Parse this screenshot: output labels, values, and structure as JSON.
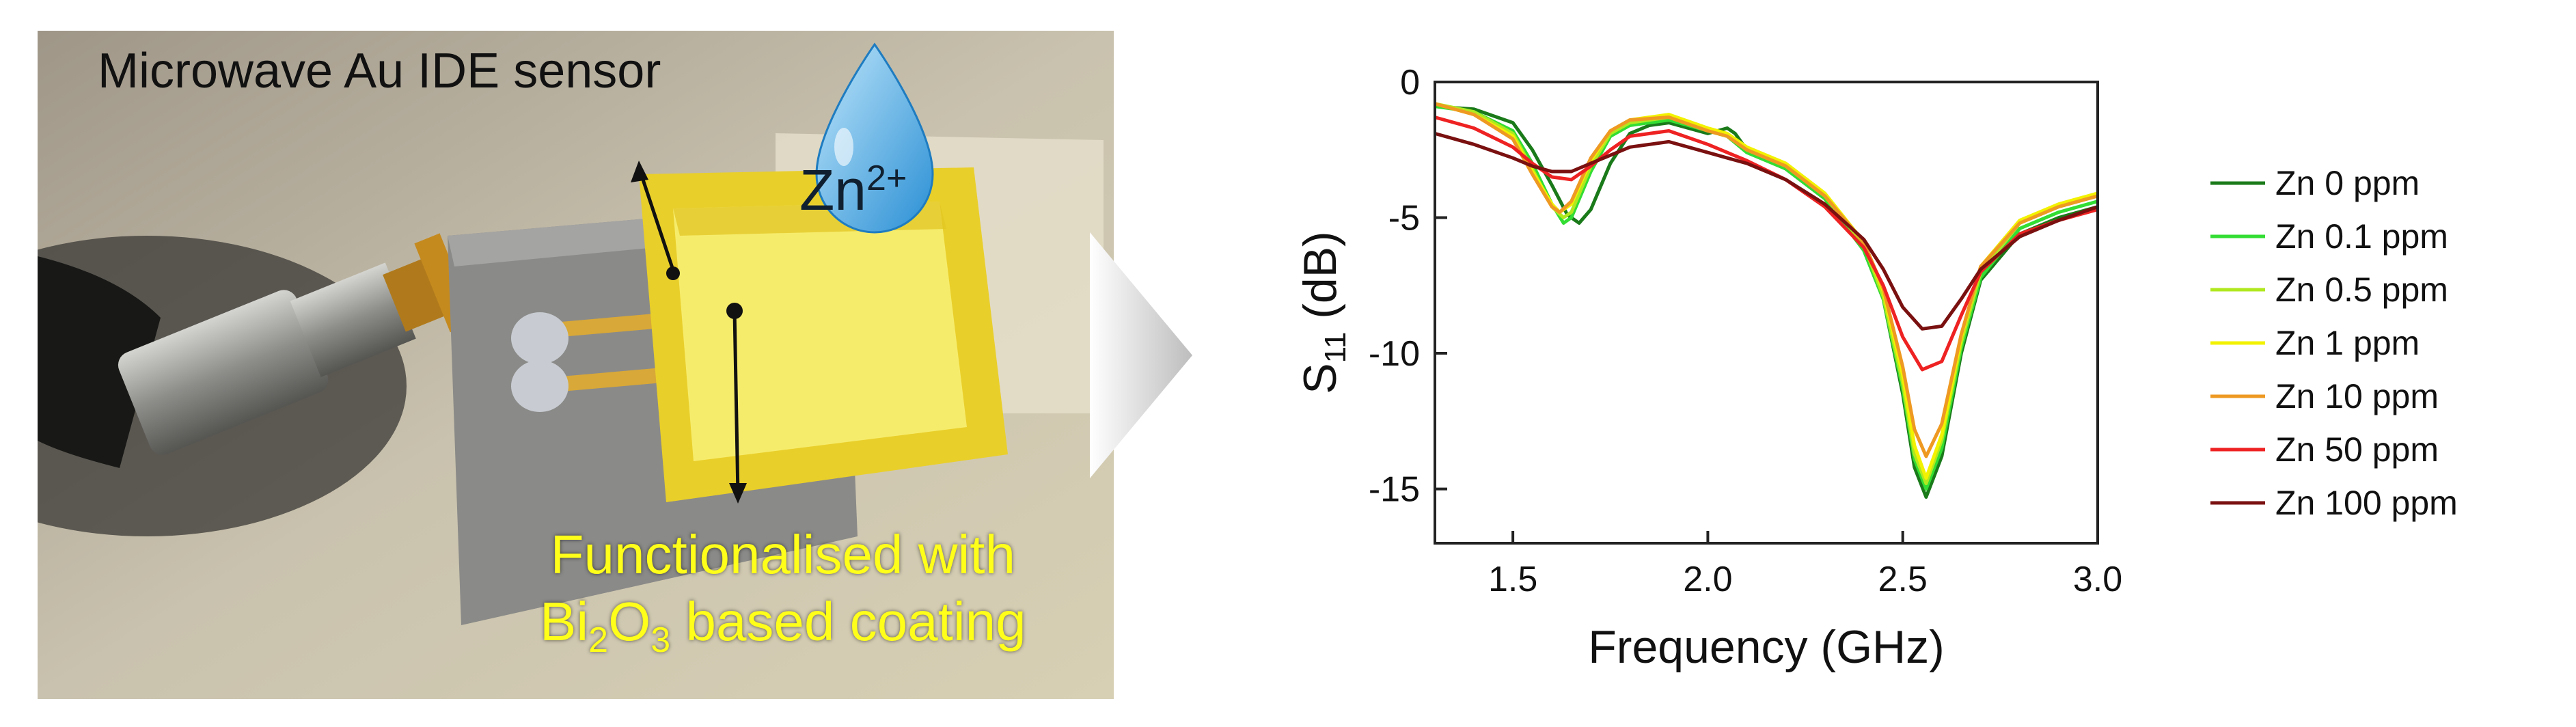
{
  "photo": {
    "sensor_label": "Microwave Au IDE sensor",
    "coating_line1_a": "Functionalised with",
    "coating_line2_a": "Bi",
    "coating_line2_sub1": "2",
    "coating_line2_b": "O",
    "coating_line2_sub2": "3",
    "coating_line2_c": " based coating",
    "ion_label": "Zn",
    "ion_charge": "2+"
  },
  "chart_data": {
    "type": "line",
    "xlabel": "Frequency (GHz)",
    "ylabel_main": "S",
    "ylabel_sub": "11",
    "ylabel_unit": " (dB)",
    "xlim": [
      1.3,
      3.0
    ],
    "ylim": [
      -17,
      0
    ],
    "xticks": [
      "1.5",
      "2.0",
      "2.5",
      "3.0"
    ],
    "yticks": [
      "0",
      "-5",
      "-10",
      "-15"
    ],
    "grid": false,
    "legend_position": "right",
    "series": [
      {
        "name": "Zn 0 ppm",
        "color": "#1a7a1a",
        "x": [
          1.3,
          1.4,
          1.5,
          1.55,
          1.6,
          1.64,
          1.67,
          1.7,
          1.75,
          1.8,
          1.85,
          1.9,
          1.95,
          2.0,
          2.05,
          2.07,
          2.1,
          2.2,
          2.3,
          2.4,
          2.45,
          2.5,
          2.53,
          2.56,
          2.6,
          2.65,
          2.7,
          2.8,
          2.9,
          3.0
        ],
        "y": [
          -0.9,
          -1.0,
          -1.5,
          -2.5,
          -3.8,
          -4.9,
          -5.2,
          -4.7,
          -3.0,
          -1.9,
          -1.6,
          -1.5,
          -1.7,
          -1.9,
          -1.7,
          -1.9,
          -2.5,
          -3.2,
          -4.3,
          -6.2,
          -8.0,
          -11.5,
          -14.2,
          -15.3,
          -13.8,
          -10.0,
          -7.3,
          -5.6,
          -5.0,
          -4.6
        ]
      },
      {
        "name": "Zn 0.1 ppm",
        "color": "#33dd33",
        "x": [
          1.3,
          1.4,
          1.5,
          1.55,
          1.6,
          1.63,
          1.65,
          1.7,
          1.75,
          1.8,
          1.9,
          2.0,
          2.05,
          2.1,
          2.2,
          2.3,
          2.4,
          2.45,
          2.5,
          2.53,
          2.56,
          2.6,
          2.65,
          2.7,
          2.8,
          2.9,
          3.0
        ],
        "y": [
          -0.9,
          -1.1,
          -1.8,
          -3.0,
          -4.5,
          -5.2,
          -5.0,
          -3.3,
          -2.0,
          -1.6,
          -1.4,
          -1.8,
          -2.0,
          -2.6,
          -3.2,
          -4.3,
          -6.2,
          -8.0,
          -11.3,
          -13.9,
          -15.0,
          -13.5,
          -9.8,
          -7.2,
          -5.4,
          -4.8,
          -4.4
        ]
      },
      {
        "name": "Zn 0.5 ppm",
        "color": "#b0e820",
        "x": [
          1.3,
          1.4,
          1.5,
          1.55,
          1.6,
          1.63,
          1.65,
          1.7,
          1.75,
          1.8,
          1.9,
          2.0,
          2.05,
          2.1,
          2.2,
          2.3,
          2.4,
          2.45,
          2.5,
          2.53,
          2.56,
          2.6,
          2.65,
          2.7,
          2.8,
          2.9,
          3.0
        ],
        "y": [
          -0.8,
          -1.1,
          -1.9,
          -3.2,
          -4.6,
          -5.0,
          -4.8,
          -3.1,
          -1.9,
          -1.5,
          -1.3,
          -1.8,
          -2.0,
          -2.5,
          -3.1,
          -4.2,
          -6.0,
          -7.9,
          -11.1,
          -13.7,
          -14.8,
          -13.2,
          -9.6,
          -7.0,
          -5.2,
          -4.6,
          -4.2
        ]
      },
      {
        "name": "Zn 1 ppm",
        "color": "#f2f200",
        "x": [
          1.3,
          1.4,
          1.5,
          1.55,
          1.6,
          1.62,
          1.65,
          1.7,
          1.75,
          1.8,
          1.9,
          2.0,
          2.05,
          2.1,
          2.2,
          2.3,
          2.4,
          2.45,
          2.5,
          2.53,
          2.56,
          2.6,
          2.65,
          2.7,
          2.8,
          2.9,
          3.0
        ],
        "y": [
          -0.8,
          -1.2,
          -2.0,
          -3.3,
          -4.5,
          -4.8,
          -4.5,
          -2.9,
          -1.8,
          -1.4,
          -1.2,
          -1.7,
          -1.9,
          -2.4,
          -3.0,
          -4.1,
          -5.9,
          -7.7,
          -10.8,
          -13.4,
          -14.6,
          -13.0,
          -9.4,
          -6.8,
          -5.1,
          -4.5,
          -4.1
        ]
      },
      {
        "name": "Zn 10 ppm",
        "color": "#ee9922",
        "x": [
          1.3,
          1.4,
          1.5,
          1.55,
          1.6,
          1.62,
          1.65,
          1.7,
          1.75,
          1.8,
          1.9,
          2.0,
          2.05,
          2.1,
          2.2,
          2.3,
          2.4,
          2.45,
          2.5,
          2.53,
          2.56,
          2.6,
          2.65,
          2.7,
          2.8,
          2.9,
          3.0
        ],
        "y": [
          -0.8,
          -1.2,
          -2.1,
          -3.4,
          -4.6,
          -4.8,
          -4.4,
          -2.8,
          -1.8,
          -1.4,
          -1.3,
          -1.8,
          -2.0,
          -2.5,
          -3.1,
          -4.2,
          -5.9,
          -7.6,
          -10.5,
          -12.8,
          -13.8,
          -12.6,
          -9.3,
          -6.8,
          -5.2,
          -4.6,
          -4.2
        ]
      },
      {
        "name": "Zn 50 ppm",
        "color": "#ee2222",
        "x": [
          1.3,
          1.4,
          1.5,
          1.55,
          1.6,
          1.65,
          1.7,
          1.75,
          1.8,
          1.9,
          2.0,
          2.05,
          2.1,
          2.2,
          2.3,
          2.4,
          2.45,
          2.5,
          2.55,
          2.6,
          2.65,
          2.7,
          2.8,
          2.9,
          3.0
        ],
        "y": [
          -1.3,
          -1.7,
          -2.4,
          -3.0,
          -3.5,
          -3.6,
          -3.1,
          -2.5,
          -2.0,
          -1.8,
          -2.3,
          -2.6,
          -2.9,
          -3.6,
          -4.6,
          -6.1,
          -7.5,
          -9.4,
          -10.6,
          -10.3,
          -8.6,
          -7.0,
          -5.6,
          -5.1,
          -4.7
        ]
      },
      {
        "name": "Zn 100 ppm",
        "color": "#7a1010",
        "x": [
          1.3,
          1.4,
          1.5,
          1.55,
          1.6,
          1.65,
          1.7,
          1.75,
          1.8,
          1.9,
          2.0,
          2.05,
          2.1,
          2.2,
          2.3,
          2.4,
          2.45,
          2.5,
          2.55,
          2.6,
          2.65,
          2.7,
          2.8,
          2.9,
          3.0
        ],
        "y": [
          -1.9,
          -2.3,
          -2.8,
          -3.1,
          -3.3,
          -3.3,
          -3.0,
          -2.7,
          -2.4,
          -2.2,
          -2.6,
          -2.8,
          -3.0,
          -3.6,
          -4.5,
          -5.8,
          -6.9,
          -8.3,
          -9.1,
          -9.0,
          -8.0,
          -6.9,
          -5.7,
          -5.1,
          -4.6
        ]
      }
    ]
  }
}
